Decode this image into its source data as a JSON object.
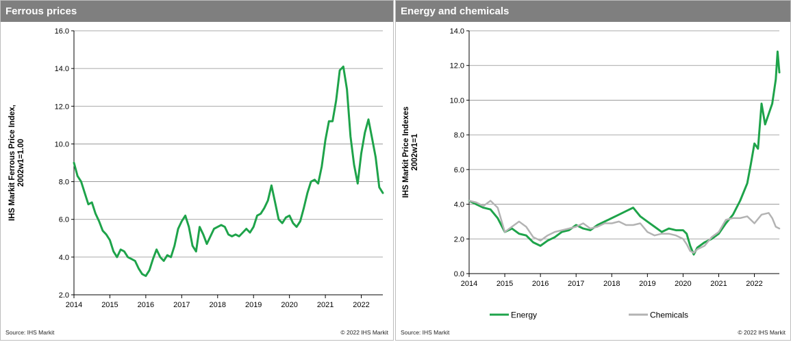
{
  "left_panel": {
    "header": "Ferrous prices",
    "source": "Source: IHS Markit",
    "copyright": "© 2022 IHS Markit"
  },
  "right_panel": {
    "header": "Energy and chemicals",
    "source": "Source: IHS Markit",
    "copyright": "© 2022 IHS Markit"
  },
  "colors": {
    "energy": "#1ea34a",
    "ferrous": "#1ea34a",
    "chemicals": "#b3b3b3",
    "grid": "#8c8c8c",
    "header": "#7f7f7f"
  },
  "chart_data": [
    {
      "type": "line",
      "title": "",
      "xlabel": "",
      "ylabel": "IHS Markit Ferrous Price Index, 2002w1=1.00",
      "ylabel_lines": [
        "IHS Markit Ferrous Price Index,",
        "2002w1=1.00"
      ],
      "xlim": [
        2014,
        2022.6
      ],
      "ylim": [
        2.0,
        16.0
      ],
      "x_ticks": [
        2014,
        2015,
        2016,
        2017,
        2018,
        2019,
        2020,
        2021,
        2022
      ],
      "y_ticks": [
        "2.0",
        "4.0",
        "6.0",
        "8.0",
        "10.0",
        "12.0",
        "14.0",
        "16.0"
      ],
      "grid": true,
      "series": [
        {
          "x": [
            2014.0,
            2014.1,
            2014.2,
            2014.3,
            2014.4,
            2014.5,
            2014.6,
            2014.7,
            2014.8,
            2014.9,
            2015.0,
            2015.1,
            2015.2,
            2015.3,
            2015.4,
            2015.5,
            2015.6,
            2015.7,
            2015.8,
            2015.9,
            2016.0,
            2016.1,
            2016.2,
            2016.3,
            2016.4,
            2016.5,
            2016.6,
            2016.7,
            2016.8,
            2016.9,
            2017.0,
            2017.1,
            2017.2,
            2017.3,
            2017.4,
            2017.5,
            2017.6,
            2017.7,
            2017.8,
            2017.9,
            2018.0,
            2018.1,
            2018.2,
            2018.3,
            2018.4,
            2018.5,
            2018.6,
            2018.7,
            2018.8,
            2018.9,
            2019.0,
            2019.1,
            2019.2,
            2019.3,
            2019.4,
            2019.5,
            2019.6,
            2019.7,
            2019.8,
            2019.9,
            2020.0,
            2020.1,
            2020.2,
            2020.3,
            2020.4,
            2020.5,
            2020.6,
            2020.7,
            2020.8,
            2020.9,
            2021.0,
            2021.1,
            2021.2,
            2021.3,
            2021.4,
            2021.5,
            2021.6,
            2021.7,
            2021.8,
            2021.9,
            2022.0,
            2022.1,
            2022.2,
            2022.3,
            2022.4,
            2022.5,
            2022.6
          ],
          "y": [
            9.0,
            8.3,
            8.0,
            7.4,
            6.8,
            6.9,
            6.3,
            5.9,
            5.4,
            5.2,
            4.9,
            4.3,
            4.0,
            4.4,
            4.3,
            4.0,
            3.9,
            3.8,
            3.4,
            3.1,
            3.0,
            3.3,
            3.9,
            4.4,
            4.0,
            3.8,
            4.1,
            4.0,
            4.6,
            5.5,
            5.9,
            6.2,
            5.6,
            4.6,
            4.3,
            5.6,
            5.2,
            4.7,
            5.1,
            5.5,
            5.6,
            5.7,
            5.6,
            5.2,
            5.1,
            5.2,
            5.1,
            5.3,
            5.5,
            5.3,
            5.6,
            6.2,
            6.3,
            6.6,
            7.0,
            7.8,
            6.9,
            6.0,
            5.8,
            6.1,
            6.2,
            5.8,
            5.6,
            5.9,
            6.6,
            7.4,
            8.0,
            8.1,
            7.9,
            8.8,
            10.2,
            11.2,
            11.2,
            12.3,
            13.9,
            14.1,
            12.9,
            10.4,
            8.9,
            7.9,
            9.5,
            10.6,
            11.3,
            10.3,
            9.3,
            7.7,
            7.4
          ]
        }
      ]
    },
    {
      "type": "line",
      "title": "",
      "xlabel": "",
      "ylabel": "IHS Markit Price Indexes 2002w1=1",
      "ylabel_lines": [
        "IHS Markit Price Indexes",
        "2002w1=1"
      ],
      "xlim": [
        2014,
        2022.7
      ],
      "ylim": [
        0.0,
        14.0
      ],
      "x_ticks": [
        2014,
        2015,
        2016,
        2017,
        2018,
        2019,
        2020,
        2021,
        2022
      ],
      "y_ticks": [
        "0.0",
        "2.0",
        "4.0",
        "6.0",
        "8.0",
        "10.0",
        "12.0",
        "14.0"
      ],
      "grid": true,
      "legend": "bottom",
      "series": [
        {
          "name": "Energy",
          "x": [
            2014.0,
            2014.2,
            2014.4,
            2014.6,
            2014.8,
            2015.0,
            2015.2,
            2015.4,
            2015.6,
            2015.8,
            2016.0,
            2016.2,
            2016.4,
            2016.6,
            2016.8,
            2017.0,
            2017.2,
            2017.4,
            2017.6,
            2017.8,
            2018.0,
            2018.2,
            2018.4,
            2018.6,
            2018.8,
            2019.0,
            2019.2,
            2019.4,
            2019.6,
            2019.8,
            2020.0,
            2020.1,
            2020.2,
            2020.3,
            2020.4,
            2020.6,
            2020.8,
            2021.0,
            2021.2,
            2021.4,
            2021.6,
            2021.8,
            2021.9,
            2022.0,
            2022.1,
            2022.2,
            2022.3,
            2022.4,
            2022.5,
            2022.55,
            2022.6,
            2022.65,
            2022.7
          ],
          "y": [
            4.2,
            4.0,
            3.8,
            3.7,
            3.2,
            2.4,
            2.6,
            2.3,
            2.2,
            1.8,
            1.6,
            1.9,
            2.1,
            2.4,
            2.5,
            2.8,
            2.6,
            2.5,
            2.8,
            3.0,
            3.2,
            3.4,
            3.6,
            3.8,
            3.3,
            3.0,
            2.7,
            2.4,
            2.6,
            2.5,
            2.5,
            2.3,
            1.6,
            1.1,
            1.5,
            1.8,
            2.0,
            2.3,
            2.9,
            3.4,
            4.2,
            5.2,
            6.3,
            7.5,
            7.2,
            9.8,
            8.6,
            9.2,
            9.8,
            10.5,
            11.2,
            12.8,
            11.6
          ]
        },
        {
          "name": "Chemicals",
          "x": [
            2014.0,
            2014.2,
            2014.4,
            2014.6,
            2014.8,
            2015.0,
            2015.2,
            2015.4,
            2015.6,
            2015.8,
            2016.0,
            2016.2,
            2016.4,
            2016.6,
            2016.8,
            2017.0,
            2017.2,
            2017.4,
            2017.6,
            2017.8,
            2018.0,
            2018.2,
            2018.4,
            2018.6,
            2018.8,
            2019.0,
            2019.2,
            2019.4,
            2019.6,
            2019.8,
            2020.0,
            2020.1,
            2020.2,
            2020.3,
            2020.4,
            2020.6,
            2020.8,
            2021.0,
            2021.2,
            2021.4,
            2021.6,
            2021.8,
            2022.0,
            2022.2,
            2022.4,
            2022.5,
            2022.6,
            2022.7
          ],
          "y": [
            4.2,
            4.1,
            3.9,
            4.2,
            3.8,
            2.4,
            2.7,
            3.0,
            2.7,
            2.1,
            1.9,
            2.2,
            2.4,
            2.5,
            2.6,
            2.7,
            2.9,
            2.6,
            2.7,
            2.9,
            2.9,
            3.0,
            2.8,
            2.8,
            2.9,
            2.4,
            2.2,
            2.3,
            2.3,
            2.2,
            2.0,
            1.7,
            1.3,
            1.2,
            1.4,
            1.6,
            2.1,
            2.4,
            3.1,
            3.2,
            3.2,
            3.3,
            2.9,
            3.4,
            3.5,
            3.2,
            2.7,
            2.6
          ]
        }
      ]
    }
  ]
}
